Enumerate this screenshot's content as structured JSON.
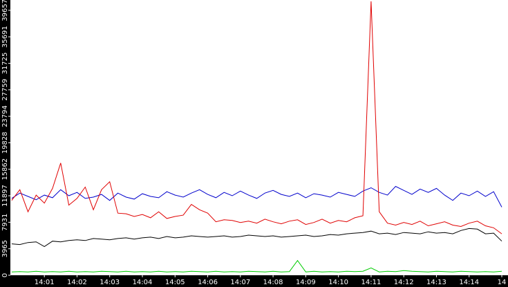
{
  "chart_data": {
    "type": "line",
    "x": [
      0,
      0.25,
      0.5,
      0.75,
      1,
      1.25,
      1.5,
      1.75,
      2,
      2.25,
      2.5,
      2.75,
      3,
      3.25,
      3.5,
      3.75,
      4,
      4.25,
      4.5,
      4.75,
      5,
      5.25,
      5.5,
      5.75,
      6,
      6.25,
      6.5,
      6.75,
      7,
      7.25,
      7.5,
      7.75,
      8,
      8.25,
      8.5,
      8.75,
      9,
      9.25,
      9.5,
      9.75,
      10,
      10.25,
      10.5,
      10.75,
      11,
      11.25,
      11.5,
      11.75,
      12,
      12.25,
      12.5,
      12.75,
      13,
      13.25,
      13.5,
      13.75,
      14,
      14.25,
      14.5,
      14.75,
      15
    ],
    "series": [
      {
        "color": "#0000cc",
        "values": [
          11500,
          12300,
          11800,
          11300,
          12000,
          11600,
          12800,
          11900,
          12400,
          11500,
          11700,
          12100,
          11200,
          12300,
          11700,
          11400,
          12200,
          11800,
          11600,
          12500,
          12000,
          11700,
          12300,
          12800,
          12100,
          11600,
          12400,
          11900,
          12600,
          12000,
          11500,
          12300,
          12700,
          12100,
          11800,
          12300,
          11600,
          12200,
          12000,
          11700,
          12400,
          12100,
          11800,
          12600,
          13100,
          12400,
          12000,
          13300,
          12700,
          12100,
          12900,
          12400,
          13000,
          12000,
          11200,
          12300,
          11900,
          12600,
          11800,
          12500,
          10200
        ]
      },
      {
        "color": "#e00000",
        "values": [
          11200,
          12800,
          9500,
          12000,
          10800,
          13000,
          16800,
          10500,
          11500,
          13200,
          9800,
          12800,
          14000,
          9300,
          9200,
          8800,
          9100,
          8600,
          9500,
          8500,
          8800,
          9000,
          10600,
          9800,
          9300,
          8000,
          8300,
          8200,
          7900,
          8100,
          7800,
          8400,
          8000,
          7700,
          8100,
          8300,
          7600,
          7900,
          8400,
          7800,
          8200,
          8000,
          8600,
          8900,
          41000,
          9500,
          7800,
          7500,
          7900,
          7600,
          8100,
          7400,
          7700,
          8000,
          7500,
          7300,
          7800,
          8100,
          7400,
          7100,
          6200
        ]
      },
      {
        "color": "#000000",
        "values": [
          4700,
          4600,
          4900,
          5000,
          4300,
          5100,
          5000,
          5200,
          5300,
          5200,
          5500,
          5400,
          5300,
          5500,
          5600,
          5400,
          5600,
          5700,
          5500,
          5800,
          5600,
          5700,
          5900,
          5800,
          5700,
          5800,
          5900,
          5700,
          5800,
          6000,
          5900,
          5800,
          5900,
          5700,
          5800,
          5900,
          6000,
          5800,
          5900,
          6100,
          6000,
          6200,
          6300,
          6400,
          6600,
          6200,
          6300,
          6100,
          6400,
          6300,
          6200,
          6500,
          6300,
          6400,
          6200,
          6700,
          7000,
          6900,
          6200,
          6300,
          5100
        ]
      },
      {
        "color": "#00cc00",
        "values": [
          500,
          550,
          500,
          600,
          500,
          550,
          500,
          600,
          500,
          550,
          500,
          600,
          550,
          500,
          600,
          500,
          550,
          500,
          600,
          500,
          550,
          500,
          600,
          550,
          500,
          600,
          500,
          550,
          500,
          600,
          550,
          500,
          600,
          500,
          550,
          2200,
          500,
          600,
          500,
          550,
          500,
          600,
          550,
          600,
          1100,
          500,
          600,
          550,
          700,
          600,
          550,
          500,
          600,
          550,
          500,
          600,
          550,
          500,
          550,
          500,
          600
        ]
      }
    ],
    "xlim": [
      -0.04,
      15.19
    ],
    "xticks": [
      {
        "value": 1,
        "label": "14:01"
      },
      {
        "value": 2,
        "label": "14:02"
      },
      {
        "value": 3,
        "label": "14:03"
      },
      {
        "value": 4,
        "label": "14:04"
      },
      {
        "value": 5,
        "label": "14:05"
      },
      {
        "value": 6,
        "label": "14:06"
      },
      {
        "value": 7,
        "label": "14:07"
      },
      {
        "value": 8,
        "label": "14:08"
      },
      {
        "value": 9,
        "label": "14:09"
      },
      {
        "value": 10,
        "label": "14:10"
      },
      {
        "value": 11,
        "label": "14:11"
      },
      {
        "value": 12,
        "label": "14:12"
      },
      {
        "value": 13,
        "label": "14:13"
      },
      {
        "value": 14,
        "label": "14:14"
      },
      {
        "value": 15,
        "label": "14"
      }
    ],
    "ylim": [
      0,
      41200
    ],
    "yticks": [
      0,
      3965,
      7931,
      11897,
      15862,
      19828,
      23794,
      27759,
      31725,
      35691,
      39657
    ]
  }
}
